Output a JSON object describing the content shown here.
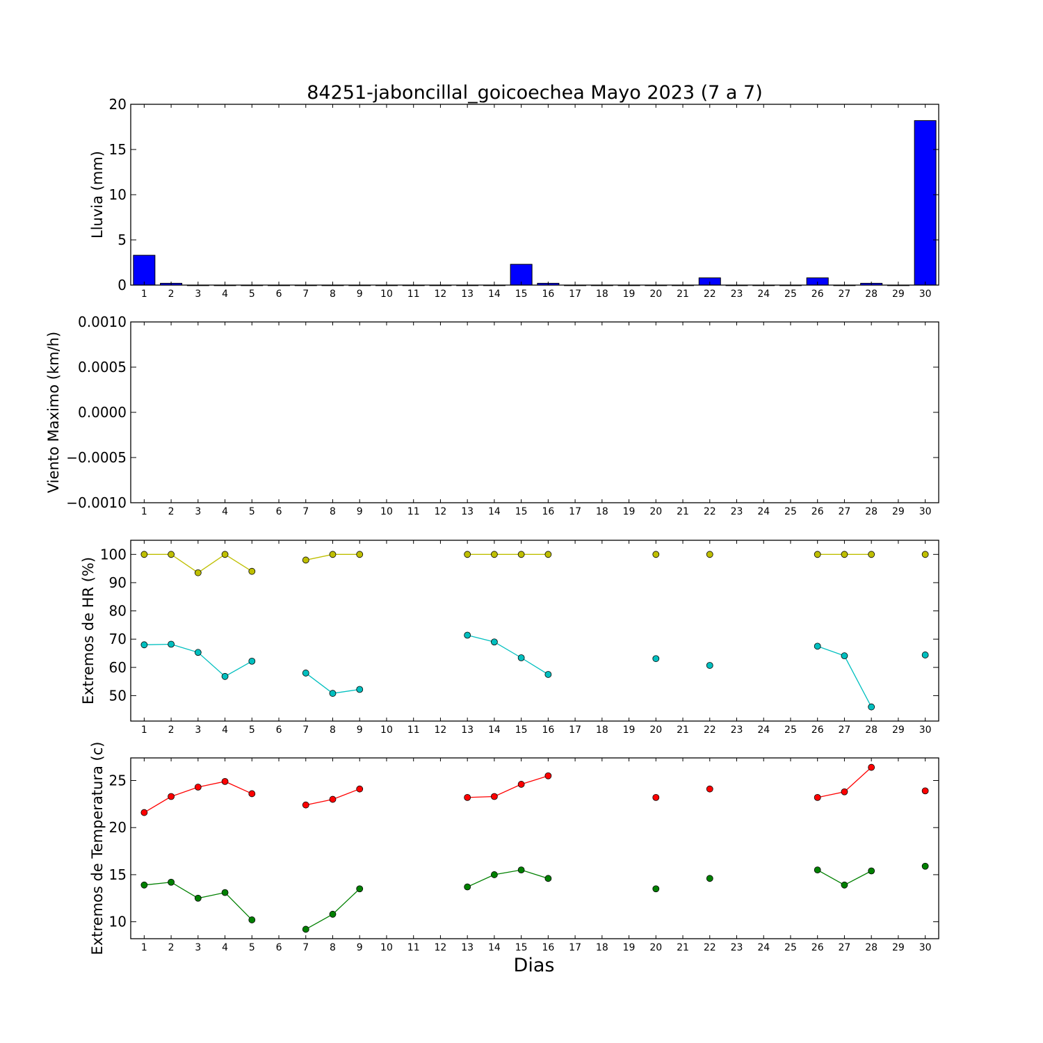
{
  "chart_data": [
    {
      "type": "bar",
      "title": "84251-jaboncillal_goicoechea Mayo 2023  (7 a 7)",
      "ylabel": "Lluvia (mm)",
      "ylim": [
        0,
        20
      ],
      "yticks": [
        "0",
        "5",
        "10",
        "15",
        "20"
      ],
      "color": "#0000ff",
      "x": [
        1,
        2,
        3,
        4,
        5,
        6,
        7,
        8,
        9,
        10,
        11,
        12,
        13,
        14,
        15,
        16,
        17,
        18,
        19,
        20,
        21,
        22,
        23,
        24,
        25,
        26,
        27,
        28,
        29,
        30
      ],
      "values": [
        3.3,
        0.2,
        0,
        0,
        0,
        0,
        0,
        0,
        0,
        0,
        0,
        0,
        0,
        0,
        2.3,
        0.2,
        0,
        0,
        0,
        0,
        0,
        0.8,
        0,
        0,
        0,
        0.8,
        0,
        0.2,
        0,
        18.2
      ]
    },
    {
      "type": "line",
      "ylabel": "Viento Maximo (km/h)",
      "ylim": [
        -0.001,
        0.001
      ],
      "yticks": [
        "−0.0010",
        "−0.0005",
        "0.0000",
        "0.0005",
        "0.0010"
      ],
      "x": [
        1,
        2,
        3,
        4,
        5,
        6,
        7,
        8,
        9,
        10,
        11,
        12,
        13,
        14,
        15,
        16,
        17,
        18,
        19,
        20,
        21,
        22,
        23,
        24,
        25,
        26,
        27,
        28,
        29,
        30
      ],
      "series": []
    },
    {
      "type": "line",
      "ylabel": "Extremos de HR (%)",
      "ylim": [
        41,
        105
      ],
      "yticks": [
        "50",
        "60",
        "70",
        "80",
        "90",
        "100"
      ],
      "x": [
        1,
        2,
        3,
        4,
        5,
        6,
        7,
        8,
        9,
        10,
        11,
        12,
        13,
        14,
        15,
        16,
        17,
        18,
        19,
        20,
        21,
        22,
        23,
        24,
        25,
        26,
        27,
        28,
        29,
        30
      ],
      "series": [
        {
          "color": "#bfbf00",
          "values": [
            100,
            100,
            93.5,
            100,
            94,
            null,
            98,
            100,
            100,
            null,
            null,
            null,
            100,
            100,
            100,
            100,
            null,
            null,
            null,
            100,
            null,
            100,
            null,
            null,
            null,
            100,
            100,
            100,
            null,
            100
          ]
        },
        {
          "color": "#00bfbf",
          "values": [
            68,
            68.2,
            65.3,
            56.8,
            62.2,
            null,
            58,
            50.8,
            52.2,
            null,
            null,
            null,
            71.4,
            69,
            63.4,
            57.5,
            null,
            null,
            null,
            63.1,
            null,
            60.7,
            null,
            null,
            null,
            67.5,
            64.1,
            46,
            null,
            64.4
          ]
        }
      ]
    },
    {
      "type": "line",
      "ylabel": "Extremos de Temperatura (c)",
      "xlabel": "Dias",
      "ylim": [
        8.2,
        27.4
      ],
      "yticks": [
        "10",
        "15",
        "20",
        "25"
      ],
      "x": [
        1,
        2,
        3,
        4,
        5,
        6,
        7,
        8,
        9,
        10,
        11,
        12,
        13,
        14,
        15,
        16,
        17,
        18,
        19,
        20,
        21,
        22,
        23,
        24,
        25,
        26,
        27,
        28,
        29,
        30
      ],
      "series": [
        {
          "color": "#ff0000",
          "values": [
            21.6,
            23.3,
            24.3,
            24.9,
            23.6,
            null,
            22.4,
            23,
            24.1,
            null,
            null,
            null,
            23.2,
            23.3,
            24.6,
            25.5,
            null,
            null,
            null,
            23.2,
            null,
            24.1,
            null,
            null,
            null,
            23.2,
            23.8,
            26.4,
            null,
            23.9
          ]
        },
        {
          "color": "#008000",
          "values": [
            13.9,
            14.2,
            12.5,
            13.1,
            10.2,
            null,
            9.2,
            10.8,
            13.5,
            null,
            null,
            null,
            13.7,
            15,
            15.5,
            14.6,
            null,
            null,
            null,
            13.5,
            null,
            14.6,
            null,
            null,
            null,
            15.5,
            13.9,
            15.4,
            null,
            15.9
          ]
        }
      ]
    }
  ]
}
